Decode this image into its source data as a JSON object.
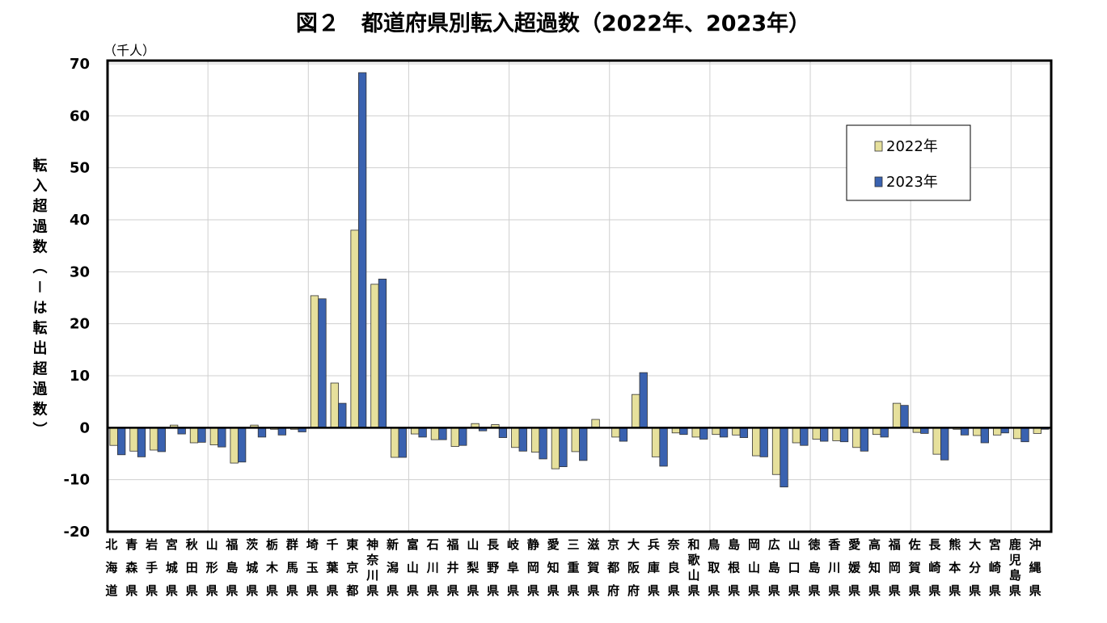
{
  "chart_data": {
    "type": "bar",
    "title": "図２　都道府県別転入超過数（2022年、2023年）",
    "y_unit": "（千人）",
    "y_label": "転入超過数（－は転出超過数）",
    "categories": [
      "北海道",
      "青森県",
      "岩手県",
      "宮城県",
      "秋田県",
      "山形県",
      "福島県",
      "茨城県",
      "栃木県",
      "群馬県",
      "埼玉県",
      "千葉県",
      "東京都",
      "神奈川県",
      "新潟県",
      "富山県",
      "石川県",
      "福井県",
      "山梨県",
      "長野県",
      "岐阜県",
      "静岡県",
      "愛知県",
      "三重県",
      "滋賀県",
      "京都府",
      "大阪府",
      "兵庫県",
      "奈良県",
      "和歌山県",
      "鳥取県",
      "島根県",
      "岡山県",
      "広島県",
      "山口県",
      "徳島県",
      "香川県",
      "愛媛県",
      "高知県",
      "福岡県",
      "佐賀県",
      "長崎県",
      "熊本県",
      "大分県",
      "宮崎県",
      "鹿児島県",
      "沖縄県"
    ],
    "series": [
      {
        "name": "2022年",
        "color": "#e6e09c",
        "values": [
          -3.4,
          -4.5,
          -4.3,
          0.5,
          -2.9,
          -3.3,
          -6.8,
          0.5,
          -0.3,
          -0.3,
          25.4,
          8.6,
          38.0,
          27.6,
          -5.7,
          -1.2,
          -2.3,
          -3.6,
          0.8,
          0.6,
          -3.8,
          -4.7,
          -7.9,
          -4.6,
          1.6,
          -1.8,
          6.4,
          -5.6,
          -1.0,
          -1.8,
          -1.3,
          -1.4,
          -5.4,
          -9.0,
          -2.9,
          -2.2,
          -2.5,
          -3.8,
          -1.3,
          4.7,
          -0.9,
          -5.1,
          -0.3,
          -1.5,
          -1.4,
          -2.1,
          -1.1
        ]
      },
      {
        "name": "2023年",
        "color": "#3a62b0",
        "values": [
          -5.2,
          -5.6,
          -4.6,
          -1.2,
          -2.8,
          -3.7,
          -6.6,
          -1.8,
          -1.4,
          -0.8,
          24.8,
          4.7,
          68.3,
          28.6,
          -5.7,
          -1.8,
          -2.3,
          -3.4,
          -0.6,
          -1.9,
          -4.5,
          -6.0,
          -7.5,
          -6.3,
          -0.1,
          -2.6,
          10.6,
          -7.4,
          -1.3,
          -2.2,
          -1.8,
          -1.9,
          -5.6,
          -11.4,
          -3.4,
          -2.6,
          -2.7,
          -4.5,
          -1.8,
          4.3,
          -1.1,
          -6.2,
          -1.4,
          -2.9,
          -1.0,
          -2.7,
          -0.3
        ]
      }
    ],
    "ylim": [
      -20,
      70
    ],
    "yticks": [
      -20,
      -10,
      0,
      10,
      20,
      30,
      40,
      50,
      60,
      70
    ],
    "grid": true,
    "legend": "upper right"
  }
}
